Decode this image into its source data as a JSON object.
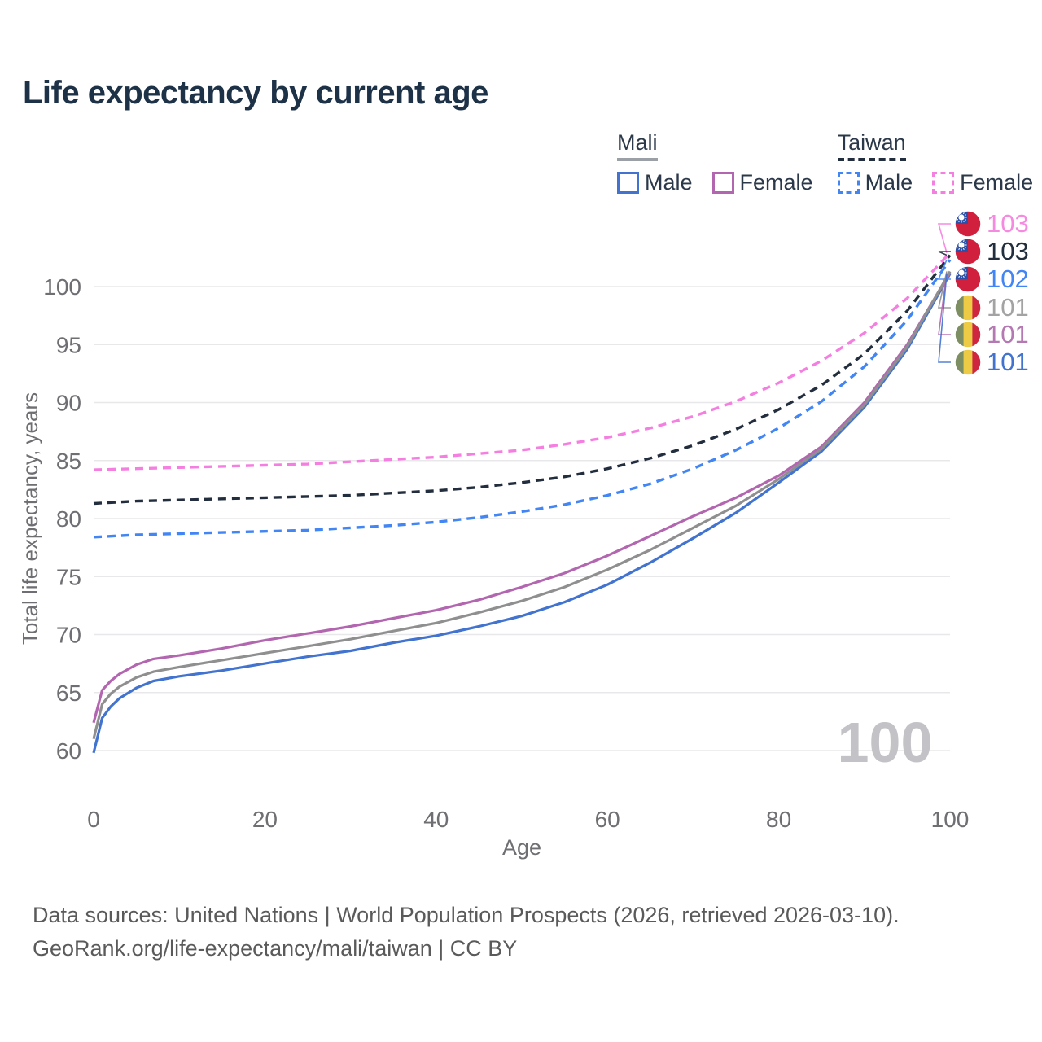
{
  "title": "Life expectancy by current age",
  "legend": {
    "groups": [
      {
        "label": "Mali",
        "line_style": "solid",
        "underline_color": "#9aa0a6",
        "items": [
          {
            "label": "Male",
            "color": "#4273cf"
          },
          {
            "label": "Female",
            "color": "#b366b0"
          }
        ]
      },
      {
        "label": "Taiwan",
        "line_style": "dashed",
        "underline_color": "#222d3d",
        "items": [
          {
            "label": "Male",
            "color": "#4285f4"
          },
          {
            "label": "Female",
            "color": "#f57fe0"
          }
        ]
      }
    ]
  },
  "watermark": "100",
  "footer": {
    "line1": "Data sources: United Nations | World Population Prospects (2026, retrieved 2026-03-10).",
    "line2": "GeoRank.org/life-expectancy/mali/taiwan | CC BY"
  },
  "colors": {
    "title_text": "#1d3147",
    "axis_text": "#6e6e73",
    "gridline": "#e8e8ea",
    "watermark": "#c3c3c7",
    "footer_text": "#5a5a5a"
  },
  "chart_data": {
    "type": "line",
    "title": "Life expectancy by current age",
    "xlabel": "Age",
    "ylabel": "Total life expectancy, years",
    "x_ticks": [
      0,
      20,
      40,
      60,
      80,
      100
    ],
    "y_ticks": [
      60,
      65,
      70,
      75,
      80,
      85,
      90,
      95,
      100
    ],
    "xlim": [
      0,
      100
    ],
    "ylim": [
      60,
      103
    ],
    "grid": "horizontal",
    "legend_position": "top-right",
    "series": [
      {
        "name": "Taiwan Female",
        "country": "Taiwan",
        "sex": "Female",
        "color": "#f57fe0",
        "label_color": "#f58ae0",
        "dash": true,
        "flag": "taiwan",
        "end_label": "103",
        "points": [
          [
            0,
            84.2
          ],
          [
            5,
            84.3
          ],
          [
            10,
            84.4
          ],
          [
            15,
            84.5
          ],
          [
            20,
            84.6
          ],
          [
            25,
            84.7
          ],
          [
            30,
            84.9
          ],
          [
            35,
            85.1
          ],
          [
            40,
            85.3
          ],
          [
            45,
            85.6
          ],
          [
            50,
            85.9
          ],
          [
            55,
            86.4
          ],
          [
            60,
            87.0
          ],
          [
            65,
            87.8
          ],
          [
            70,
            88.8
          ],
          [
            75,
            90.1
          ],
          [
            80,
            91.7
          ],
          [
            85,
            93.6
          ],
          [
            90,
            96.0
          ],
          [
            95,
            99.0
          ],
          [
            100,
            102.9
          ]
        ]
      },
      {
        "name": "Taiwan Both sexes",
        "country": "Taiwan",
        "sex": "Both",
        "color": "#222d3d",
        "label_color": "#222d3d",
        "dash": true,
        "flag": "taiwan",
        "end_label": "103",
        "points": [
          [
            0,
            81.3
          ],
          [
            5,
            81.5
          ],
          [
            10,
            81.6
          ],
          [
            15,
            81.7
          ],
          [
            20,
            81.8
          ],
          [
            25,
            81.9
          ],
          [
            30,
            82.0
          ],
          [
            35,
            82.2
          ],
          [
            40,
            82.4
          ],
          [
            45,
            82.7
          ],
          [
            50,
            83.1
          ],
          [
            55,
            83.6
          ],
          [
            60,
            84.3
          ],
          [
            65,
            85.2
          ],
          [
            70,
            86.3
          ],
          [
            75,
            87.7
          ],
          [
            80,
            89.4
          ],
          [
            85,
            91.5
          ],
          [
            90,
            94.2
          ],
          [
            95,
            97.9
          ],
          [
            100,
            102.7
          ]
        ]
      },
      {
        "name": "Taiwan Male",
        "country": "Taiwan",
        "sex": "Male",
        "color": "#4285f4",
        "label_color": "#4285f4",
        "dash": true,
        "flag": "taiwan",
        "end_label": "102",
        "points": [
          [
            0,
            78.4
          ],
          [
            5,
            78.6
          ],
          [
            10,
            78.7
          ],
          [
            15,
            78.8
          ],
          [
            20,
            78.9
          ],
          [
            25,
            79.0
          ],
          [
            30,
            79.2
          ],
          [
            35,
            79.4
          ],
          [
            40,
            79.7
          ],
          [
            45,
            80.1
          ],
          [
            50,
            80.6
          ],
          [
            55,
            81.2
          ],
          [
            60,
            82.0
          ],
          [
            65,
            83.0
          ],
          [
            70,
            84.3
          ],
          [
            75,
            85.9
          ],
          [
            80,
            87.8
          ],
          [
            85,
            90.1
          ],
          [
            90,
            93.1
          ],
          [
            95,
            97.1
          ],
          [
            100,
            102.3
          ]
        ]
      },
      {
        "name": "Mali Both sexes",
        "country": "Mali",
        "sex": "Both",
        "color": "#8f8f8f",
        "label_color": "#a3a3a3",
        "dash": false,
        "flag": "mali",
        "end_label": "101",
        "points": [
          [
            0,
            61.0
          ],
          [
            1,
            64.0
          ],
          [
            2,
            64.9
          ],
          [
            3,
            65.5
          ],
          [
            5,
            66.3
          ],
          [
            7,
            66.8
          ],
          [
            10,
            67.2
          ],
          [
            15,
            67.8
          ],
          [
            20,
            68.4
          ],
          [
            25,
            69.0
          ],
          [
            30,
            69.6
          ],
          [
            35,
            70.3
          ],
          [
            40,
            71.0
          ],
          [
            45,
            71.9
          ],
          [
            50,
            72.9
          ],
          [
            55,
            74.1
          ],
          [
            60,
            75.6
          ],
          [
            65,
            77.3
          ],
          [
            70,
            79.2
          ],
          [
            75,
            81.1
          ],
          [
            80,
            83.4
          ],
          [
            85,
            86.0
          ],
          [
            90,
            89.8
          ],
          [
            95,
            94.8
          ],
          [
            100,
            101.3
          ]
        ]
      },
      {
        "name": "Mali Female",
        "country": "Mali",
        "sex": "Female",
        "color": "#b366b0",
        "label_color": "#b478b2",
        "dash": false,
        "flag": "mali",
        "end_label": "101",
        "points": [
          [
            0,
            62.4
          ],
          [
            1,
            65.2
          ],
          [
            2,
            66.0
          ],
          [
            3,
            66.6
          ],
          [
            5,
            67.4
          ],
          [
            7,
            67.9
          ],
          [
            10,
            68.2
          ],
          [
            15,
            68.8
          ],
          [
            20,
            69.5
          ],
          [
            25,
            70.1
          ],
          [
            30,
            70.7
          ],
          [
            35,
            71.4
          ],
          [
            40,
            72.1
          ],
          [
            45,
            73.0
          ],
          [
            50,
            74.1
          ],
          [
            55,
            75.3
          ],
          [
            60,
            76.8
          ],
          [
            65,
            78.5
          ],
          [
            70,
            80.2
          ],
          [
            75,
            81.8
          ],
          [
            80,
            83.7
          ],
          [
            85,
            86.2
          ],
          [
            90,
            90.0
          ],
          [
            95,
            95.0
          ],
          [
            100,
            101.2
          ]
        ]
      },
      {
        "name": "Mali Male",
        "country": "Mali",
        "sex": "Male",
        "color": "#4273cf",
        "label_color": "#4273cf",
        "dash": false,
        "flag": "mali",
        "end_label": "101",
        "points": [
          [
            0,
            59.8
          ],
          [
            1,
            62.8
          ],
          [
            2,
            63.8
          ],
          [
            3,
            64.5
          ],
          [
            5,
            65.4
          ],
          [
            7,
            66.0
          ],
          [
            10,
            66.4
          ],
          [
            15,
            66.9
          ],
          [
            20,
            67.5
          ],
          [
            25,
            68.1
          ],
          [
            30,
            68.6
          ],
          [
            35,
            69.3
          ],
          [
            40,
            69.9
          ],
          [
            45,
            70.7
          ],
          [
            50,
            71.6
          ],
          [
            55,
            72.8
          ],
          [
            60,
            74.3
          ],
          [
            65,
            76.2
          ],
          [
            70,
            78.3
          ],
          [
            75,
            80.5
          ],
          [
            80,
            83.1
          ],
          [
            85,
            85.8
          ],
          [
            90,
            89.6
          ],
          [
            95,
            94.6
          ],
          [
            100,
            101.1
          ]
        ]
      }
    ]
  }
}
